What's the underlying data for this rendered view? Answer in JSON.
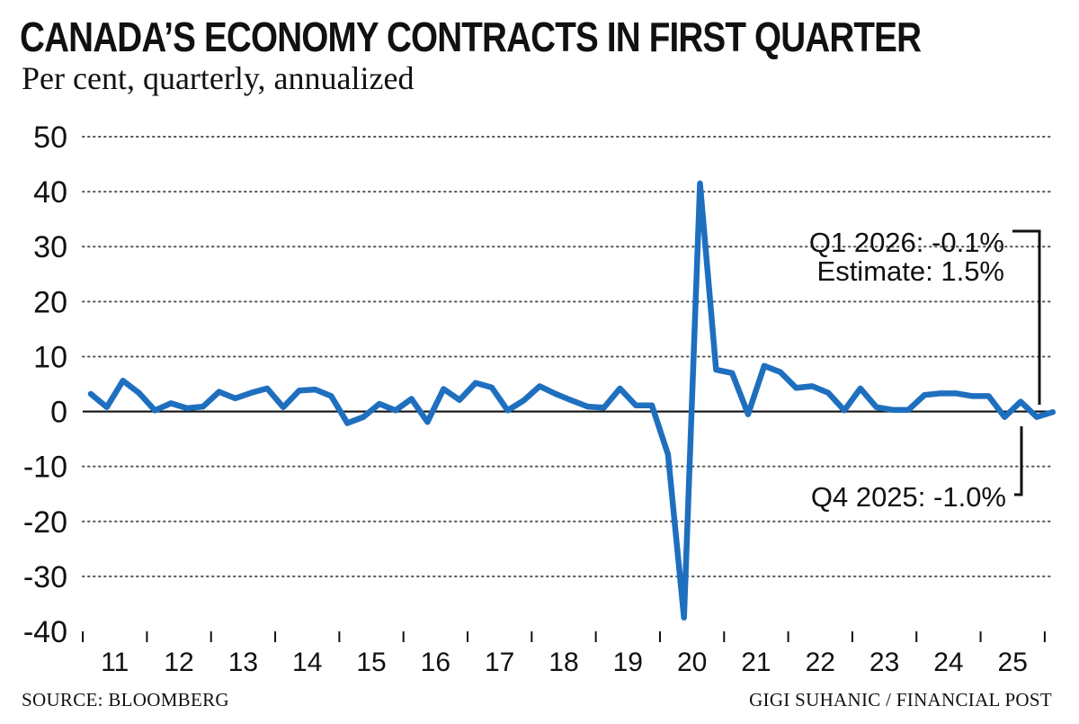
{
  "header": {
    "title": "CANADA’S ECONOMY CONTRACTS IN FIRST QUARTER",
    "subtitle": "Per cent, quarterly, annualized"
  },
  "footer": {
    "source": "SOURCE: BLOOMBERG",
    "credit": "GIGI SUHANIC / FINANCIAL POST"
  },
  "colors": {
    "line": "#1f6fbf",
    "text": "#111111",
    "grid": "#555555"
  },
  "chart_data": {
    "type": "line",
    "title": "CANADA’S ECONOMY CONTRACTS IN FIRST QUARTER",
    "subtitle": "Per cent, quarterly, annualized",
    "ylim": [
      -40,
      50
    ],
    "yticks": [
      50,
      40,
      30,
      20,
      10,
      0,
      -10,
      -20,
      -30,
      -40
    ],
    "grid": "horizontal dotted",
    "x_tick_labels": [
      "11",
      "12",
      "13",
      "14",
      "15",
      "16",
      "17",
      "18",
      "19",
      "20",
      "21",
      "22",
      "23",
      "24",
      "25"
    ],
    "x_start_label": "2011 Q1",
    "series": [
      {
        "values": [
          3.2,
          0.8,
          5.6,
          3.4,
          0.2,
          1.5,
          0.6,
          0.9,
          3.6,
          2.4,
          3.4,
          4.2,
          0.8,
          3.8,
          4.0,
          2.8,
          -2.1,
          -1.0,
          1.4,
          0.2,
          2.3,
          -1.9,
          4.1,
          2.1,
          5.2,
          4.4,
          0.2,
          2.0,
          4.6,
          3.2,
          2.0,
          0.9,
          0.7,
          4.2,
          1.1,
          1.1,
          -7.8,
          -37.5,
          41.5,
          7.6,
          7.0,
          -0.5,
          8.3,
          7.2,
          4.3,
          4.6,
          3.4,
          0.2,
          4.2,
          0.8,
          0.3,
          0.3,
          3.0,
          3.3,
          3.3,
          2.8,
          2.8,
          -1.0,
          1.8,
          -1.0,
          -0.1
        ]
      }
    ],
    "annotations": [
      {
        "label": "Q1 2026: -0.1%",
        "value": -0.1
      },
      {
        "label": "Estimate: 1.5%",
        "value": 1.5
      },
      {
        "label": "Q4 2025: -1.0%",
        "value": -1.0
      }
    ]
  }
}
